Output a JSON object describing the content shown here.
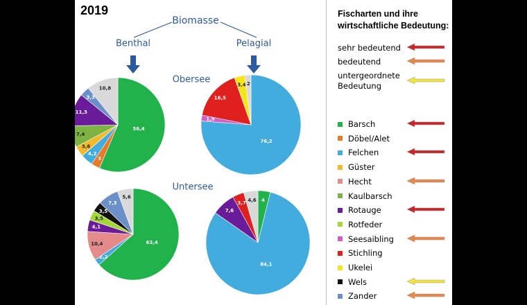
{
  "title": "2019",
  "labels": {
    "top": "Biomasse",
    "left": "Benthal",
    "right": "Pelagial",
    "upper": "Obersee",
    "lower": "Untersee"
  },
  "legend": {
    "title": "Fischarten und ihre wirtschaftliche Bedeutung:",
    "levels": [
      {
        "label": "sehr bedeutend",
        "color": "#c8262b"
      },
      {
        "label": "bedeutend",
        "color": "#e8874a"
      },
      {
        "label": "untergeordnete Bedeutung",
        "color": "#f2e33c"
      }
    ],
    "species": [
      {
        "name": "Barsch",
        "color": "#22b24c",
        "level": 0
      },
      {
        "name": "Döbel/Alet",
        "color": "#e87b2a",
        "level": null
      },
      {
        "name": "Felchen",
        "color": "#41acdd",
        "level": 0
      },
      {
        "name": "Güster",
        "color": "#f2b92b",
        "level": null
      },
      {
        "name": "Hecht",
        "color": "#e58a8a",
        "level": 1
      },
      {
        "name": "Kaulbarsch",
        "color": "#7cb342",
        "level": null
      },
      {
        "name": "Rotauge",
        "color": "#6a1b9a",
        "level": 0
      },
      {
        "name": "Rotfeder",
        "color": "#a5d63a",
        "level": null
      },
      {
        "name": "Seesaibling",
        "color": "#d35fc8",
        "level": 1
      },
      {
        "name": "Stichling",
        "color": "#e0201e",
        "level": null
      },
      {
        "name": "Ukelei",
        "color": "#f5e61c",
        "level": null
      },
      {
        "name": "Wels",
        "color": "#111111",
        "level": 2
      },
      {
        "name": "Zander",
        "color": "#6a8fc9",
        "level": 1
      }
    ]
  },
  "chart_data": [
    {
      "type": "pie",
      "categories": [
        "Barsch",
        "Döbel/Alet",
        "Felchen",
        "Güster",
        "Kaulbarsch",
        "Rotauge",
        "Zander",
        null
      ],
      "values": [
        56.4,
        3,
        4.2,
        3.6,
        7.4,
        11.3,
        3.3,
        10.8
      ],
      "value_labels": [
        "56,4",
        "3",
        "4,2",
        "3,6",
        "7,4",
        "11,3",
        "3,3",
        "10,8"
      ],
      "colors": [
        "#22b24c",
        "#e87b2a",
        "#41acdd",
        "#f2b92b",
        "#7cb342",
        "#6a1b9a",
        "#6a8fc9",
        "#d9d9d9"
      ]
    },
    {
      "type": "pie",
      "categories": [
        "Felchen",
        "Seesaibling",
        "Stichling",
        "Ukelei",
        null
      ],
      "values": [
        76.2,
        1.9,
        16.5,
        3.4,
        2
      ],
      "value_labels": [
        "76,2",
        "1,9",
        "16,5",
        "3,4",
        "2"
      ],
      "colors": [
        "#41acdd",
        "#d35fc8",
        "#e0201e",
        "#f5e61c",
        "#d9d9d9"
      ]
    },
    {
      "type": "pie",
      "categories": [
        "Barsch",
        "Felchen",
        "Hecht",
        "Rotauge",
        "Rotfeder",
        "Wels",
        "Zander",
        null
      ],
      "values": [
        63.4,
        2.2,
        10.4,
        4.1,
        3.5,
        3.5,
        7.3,
        5.6
      ],
      "value_labels": [
        "63,4",
        "2,2",
        "10,4",
        "4,1",
        "3,5",
        "3,5",
        "7,3",
        "5,6"
      ],
      "colors": [
        "#22b24c",
        "#41acdd",
        "#e58a8a",
        "#6a1b9a",
        "#a5d63a",
        "#111111",
        "#6a8fc9",
        "#d9d9d9"
      ]
    },
    {
      "type": "pie",
      "categories": [
        "Barsch",
        "Felchen",
        "Rotauge",
        "Stichling",
        null
      ],
      "values": [
        4,
        84.1,
        7.6,
        3.7,
        4.6
      ],
      "value_labels": [
        "4",
        "84,1",
        "7,6",
        "3,7",
        "4,6"
      ],
      "colors": [
        "#22b24c",
        "#41acdd",
        "#6a1b9a",
        "#e0201e",
        "#d9d9d9"
      ]
    }
  ]
}
